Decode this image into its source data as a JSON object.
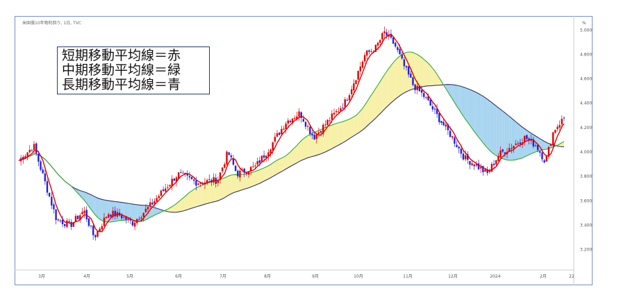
{
  "chart_data": {
    "type": "candlestick",
    "source_label": "米国債10年物利回り, 1日, TVC",
    "unit_label": "%",
    "legend_lines": [
      "短期移動平均線＝赤",
      "中期移動平均線＝緑",
      "長期移動平均線＝青"
    ],
    "y_ticks": [
      "3.200%",
      "3.400%",
      "3.600%",
      "3.800%",
      "4.000%",
      "4.200%",
      "4.400%",
      "4.600%",
      "4.800%",
      "5.000%"
    ],
    "x_ticks": [
      "3月",
      "4月",
      "5月",
      "6月",
      "7月",
      "8月",
      "9月",
      "10月",
      "11月",
      "12月",
      "2024",
      "2月",
      "22"
    ],
    "ylim": [
      3.05,
      5.07
    ],
    "colors": {
      "up": "#e00000",
      "down": "#2020e0",
      "short_ma": "#e00000",
      "mid_ma": "#33aa33",
      "long_ma": "#333366",
      "fill_up": "#f7f0a8",
      "fill_down": "#a8d4f0"
    },
    "close_approx": {
      "months": [
        "2023-03",
        "2023-04",
        "2023-05",
        "2023-06",
        "2023-07",
        "2023-08",
        "2023-09",
        "2023-10",
        "2023-11",
        "2023-12",
        "2024-01",
        "2024-02"
      ],
      "start": [
        3.95,
        3.45,
        3.44,
        3.65,
        3.85,
        4.05,
        4.18,
        4.62,
        4.85,
        4.3,
        3.9,
        4.0
      ],
      "end": [
        3.45,
        3.44,
        3.65,
        3.84,
        4.0,
        4.1,
        4.6,
        4.9,
        4.3,
        3.88,
        4.05,
        4.28
      ]
    }
  }
}
